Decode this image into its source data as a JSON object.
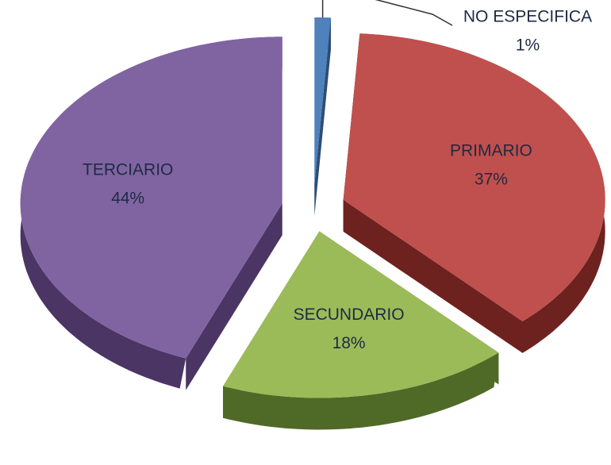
{
  "chart_data": {
    "type": "pie",
    "categories": [
      "NO ESPECIFICA",
      "PRIMARIO",
      "SECUNDARIO",
      "TERCIARIO"
    ],
    "values": [
      1,
      37,
      18,
      44
    ],
    "value_labels": [
      "1%",
      "37%",
      "18%",
      "44%"
    ],
    "colors": [
      "#4f81bd",
      "#c0504d",
      "#9bbb59",
      "#8064a2"
    ],
    "side_colors": [
      "#2c4d75",
      "#6e2220",
      "#4f6a26",
      "#4a3564"
    ]
  }
}
